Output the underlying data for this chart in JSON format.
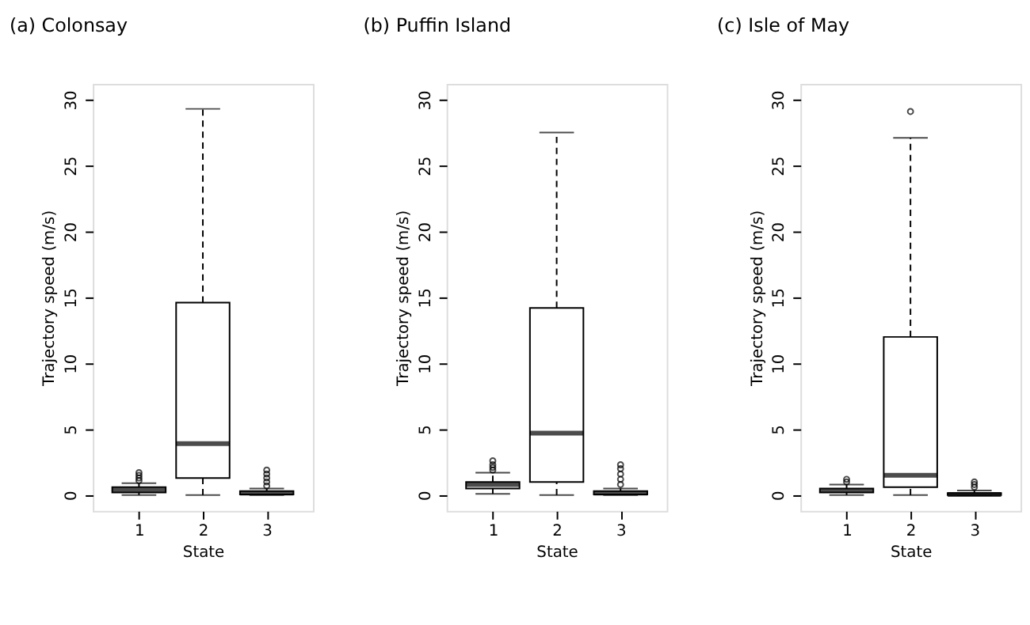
{
  "chart_data": [
    {
      "type": "box",
      "title": "(a) Colonsay",
      "xlabel": "State",
      "ylabel": "Trajectory speed (m/s)",
      "categories": [
        "1",
        "2",
        "3"
      ],
      "boxes": [
        {
          "low": 0,
          "q1": 0.2,
          "median": 0.4,
          "q3": 0.6,
          "high": 0.9,
          "outliers": [
            1.1,
            1.3,
            1.5,
            1.7
          ]
        },
        {
          "low": 0,
          "q1": 1.3,
          "median": 3.9,
          "q3": 14.6,
          "high": 29.3
        },
        {
          "low": 0,
          "q1": 0.05,
          "median": 0.15,
          "q3": 0.3,
          "high": 0.5,
          "outliers": [
            0.7,
            1.0,
            1.3,
            1.6,
            1.9
          ]
        }
      ],
      "color": "#000000",
      "ylim": [
        -1.2,
        31.2
      ],
      "yticks": [
        0,
        5,
        10,
        15,
        20,
        25,
        30
      ],
      "grid": false
    },
    {
      "type": "box",
      "title": "(b) Puffin Island",
      "xlabel": "State",
      "ylabel": "Trajectory speed (m/s)",
      "categories": [
        "1",
        "2",
        "3"
      ],
      "boxes": [
        {
          "low": 0.1,
          "q1": 0.5,
          "median": 0.8,
          "q3": 1.0,
          "high": 1.7,
          "outliers": [
            1.9,
            2.1,
            2.3,
            2.6
          ]
        },
        {
          "low": 0,
          "q1": 1.0,
          "median": 4.7,
          "q3": 14.2,
          "high": 27.5
        },
        {
          "low": 0,
          "q1": 0.05,
          "median": 0.15,
          "q3": 0.3,
          "high": 0.5,
          "outliers": [
            0.8,
            1.2,
            1.6,
            2.0,
            2.3
          ]
        }
      ],
      "color": "#000000",
      "ylim": [
        -1.2,
        31.2
      ],
      "yticks": [
        0,
        5,
        10,
        15,
        20,
        25,
        30
      ],
      "grid": false
    },
    {
      "type": "box",
      "title": "(c) Isle of May",
      "xlabel": "State",
      "ylabel": "Trajectory speed (m/s)",
      "categories": [
        "1",
        "2",
        "3"
      ],
      "boxes": [
        {
          "low": 0,
          "q1": 0.2,
          "median": 0.35,
          "q3": 0.5,
          "high": 0.8,
          "outliers": [
            1.0,
            1.2
          ]
        },
        {
          "low": 0,
          "q1": 0.6,
          "median": 1.5,
          "q3": 12.0,
          "high": 27.1,
          "outliers": [
            29.1
          ]
        },
        {
          "low": 0,
          "q1": 0,
          "median": 0.05,
          "q3": 0.15,
          "high": 0.35,
          "outliers": [
            0.6,
            0.8,
            1.0
          ]
        }
      ],
      "color": "#000000",
      "ylim": [
        -1.2,
        31.2
      ],
      "yticks": [
        0,
        5,
        10,
        15,
        20,
        25,
        30
      ],
      "grid": false
    }
  ]
}
